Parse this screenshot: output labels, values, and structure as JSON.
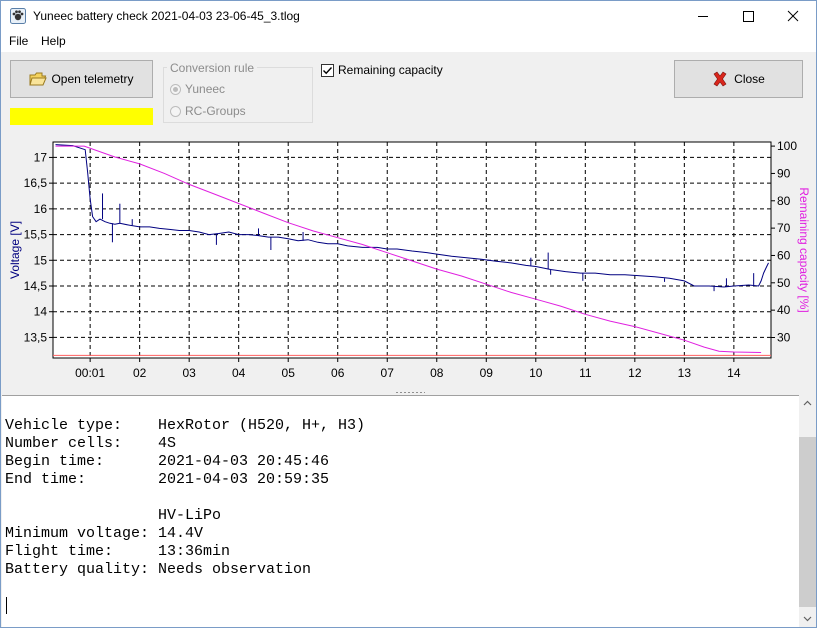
{
  "window": {
    "title": "Yuneec battery check  2021-04-03 23-06-45_3.tlog",
    "minimize_icon": "minimize-icon",
    "maximize_icon": "maximize-icon",
    "close_icon": "close-icon"
  },
  "menu": {
    "file": "File",
    "help": "Help"
  },
  "toolbar": {
    "open_label": "Open telemetry",
    "close_label": "Close",
    "status_bar_color": "#ffff00",
    "conversion_rule": {
      "label": "Conversion rule",
      "options": [
        {
          "label": "Yuneec",
          "selected": true
        },
        {
          "label": "RC-Groups",
          "selected": false
        }
      ],
      "enabled": false
    },
    "remaining_capacity": {
      "label": "Remaining capacity",
      "checked": true
    }
  },
  "chart_data": {
    "type": "line",
    "ylabel": "Voltage [V]",
    "y2label": "Remaining capacity [%]",
    "ylim": [
      13.1,
      17.3
    ],
    "y2lim": [
      22.5,
      101.5
    ],
    "xlim": [
      0.25,
      14.75
    ],
    "xticks": [
      "00:01",
      "02",
      "03",
      "04",
      "05",
      "06",
      "07",
      "08",
      "09",
      "10",
      "11",
      "12",
      "13",
      "14"
    ],
    "yticks": [
      "17",
      "16,5",
      "16",
      "15,5",
      "15",
      "14,5",
      "14",
      "13,5"
    ],
    "y2ticks": [
      "100",
      "90",
      "80",
      "70",
      "60",
      "50",
      "40",
      "30"
    ],
    "grid": true,
    "series": [
      {
        "axis": "left",
        "color": "#000080",
        "points": [
          [
            0.3,
            17.25
          ],
          [
            0.65,
            17.23
          ],
          [
            0.9,
            17.15
          ],
          [
            0.95,
            16.7
          ],
          [
            1.0,
            16.2
          ],
          [
            1.05,
            15.85
          ],
          [
            1.12,
            15.75
          ],
          [
            1.2,
            15.8
          ],
          [
            1.3,
            15.75
          ],
          [
            1.4,
            15.72
          ],
          [
            1.5,
            15.7
          ],
          [
            1.6,
            15.72
          ],
          [
            1.8,
            15.68
          ],
          [
            2.0,
            15.65
          ],
          [
            2.2,
            15.65
          ],
          [
            2.4,
            15.62
          ],
          [
            2.6,
            15.6
          ],
          [
            2.8,
            15.58
          ],
          [
            3.0,
            15.58
          ],
          [
            3.2,
            15.55
          ],
          [
            3.4,
            15.5
          ],
          [
            3.6,
            15.52
          ],
          [
            3.8,
            15.55
          ],
          [
            4.0,
            15.5
          ],
          [
            4.2,
            15.5
          ],
          [
            4.4,
            15.48
          ],
          [
            4.6,
            15.45
          ],
          [
            4.8,
            15.45
          ],
          [
            5.0,
            15.42
          ],
          [
            5.2,
            15.38
          ],
          [
            5.4,
            15.4
          ],
          [
            5.6,
            15.35
          ],
          [
            5.8,
            15.32
          ],
          [
            6.0,
            15.32
          ],
          [
            6.2,
            15.28
          ],
          [
            6.5,
            15.25
          ],
          [
            6.8,
            15.25
          ],
          [
            7.0,
            15.22
          ],
          [
            7.2,
            15.22
          ],
          [
            7.5,
            15.18
          ],
          [
            7.8,
            15.15
          ],
          [
            8.0,
            15.12
          ],
          [
            8.3,
            15.08
          ],
          [
            8.6,
            15.05
          ],
          [
            8.9,
            15.02
          ],
          [
            9.2,
            14.98
          ],
          [
            9.5,
            14.95
          ],
          [
            9.8,
            14.9
          ],
          [
            10.0,
            14.88
          ],
          [
            10.3,
            14.82
          ],
          [
            10.6,
            14.78
          ],
          [
            10.9,
            14.75
          ],
          [
            11.2,
            14.75
          ],
          [
            11.5,
            14.72
          ],
          [
            11.8,
            14.72
          ],
          [
            12.1,
            14.7
          ],
          [
            12.4,
            14.68
          ],
          [
            12.7,
            14.65
          ],
          [
            13.0,
            14.6
          ],
          [
            13.2,
            14.5
          ],
          [
            13.5,
            14.5
          ],
          [
            13.8,
            14.48
          ],
          [
            14.0,
            14.5
          ],
          [
            14.3,
            14.52
          ],
          [
            14.5,
            14.5
          ],
          [
            14.55,
            14.6
          ],
          [
            14.6,
            14.75
          ],
          [
            14.65,
            14.85
          ],
          [
            14.7,
            14.95
          ]
        ],
        "spikes": [
          [
            1.25,
            16.3
          ],
          [
            1.45,
            15.35
          ],
          [
            1.6,
            16.1
          ],
          [
            1.85,
            15.8
          ],
          [
            3.55,
            15.3
          ],
          [
            4.4,
            15.62
          ],
          [
            4.65,
            15.2
          ],
          [
            5.3,
            15.55
          ],
          [
            9.9,
            15.05
          ],
          [
            10.25,
            15.15
          ],
          [
            10.3,
            14.72
          ],
          [
            10.95,
            14.6
          ],
          [
            12.6,
            14.58
          ],
          [
            13.6,
            14.4
          ],
          [
            13.85,
            14.65
          ],
          [
            14.4,
            14.75
          ]
        ]
      },
      {
        "axis": "right",
        "color": "#e020e0",
        "points": [
          [
            0.3,
            100
          ],
          [
            0.88,
            100
          ],
          [
            1.5,
            96
          ],
          [
            2.0,
            93.5
          ],
          [
            2.5,
            90
          ],
          [
            3.0,
            86
          ],
          [
            3.5,
            82.5
          ],
          [
            4.0,
            79
          ],
          [
            4.5,
            75.5
          ],
          [
            5.0,
            72
          ],
          [
            5.5,
            69
          ],
          [
            6.0,
            66.5
          ],
          [
            6.5,
            64
          ],
          [
            7.0,
            61
          ],
          [
            7.5,
            58
          ],
          [
            8.0,
            55
          ],
          [
            8.5,
            52.5
          ],
          [
            9.0,
            49.5
          ],
          [
            9.5,
            46.5
          ],
          [
            10.0,
            44
          ],
          [
            10.5,
            41.5
          ],
          [
            11.0,
            38.5
          ],
          [
            11.5,
            36
          ],
          [
            12.0,
            34
          ],
          [
            12.5,
            31.5
          ],
          [
            13.0,
            29
          ],
          [
            13.4,
            26.5
          ],
          [
            13.7,
            25
          ],
          [
            14.0,
            24.7
          ],
          [
            14.55,
            24.5
          ]
        ]
      },
      {
        "axis": "left",
        "color": "#ff6060",
        "points": [
          [
            0.25,
            13.15
          ],
          [
            14.75,
            13.15
          ]
        ]
      }
    ]
  },
  "info": {
    "lines": [
      "Vehicle type:    HexRotor (H520, H+, H3)",
      "Number cells:    4S",
      "Begin time:      2021-04-03 20:45:46",
      "End time:        2021-04-03 20:59:35",
      "",
      "                 HV-LiPo",
      "Minimum voltage: 14.4V",
      "Flight time:     13:36min",
      "Battery quality: Needs observation"
    ]
  }
}
